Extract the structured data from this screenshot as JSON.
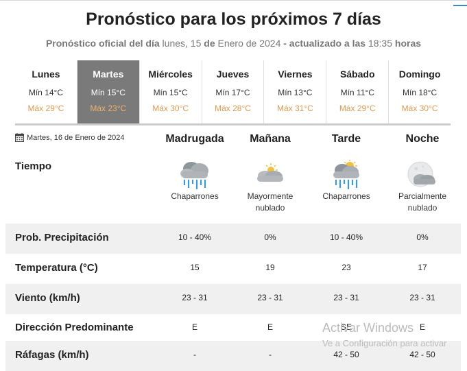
{
  "header": {
    "title": "Pronóstico para los próximos 7 días",
    "subtitle_prefix": "Pronóstico oficial del día",
    "subtitle_date": "lunes, 15",
    "subtitle_de": "de",
    "subtitle_month_year": "Enero de 2024",
    "subtitle_updated": "- actualizado a las",
    "subtitle_time": "18:35",
    "subtitle_suffix": "horas"
  },
  "days": [
    {
      "name": "Lunes",
      "min": "Mín 14°C",
      "max": "Máx 29°C",
      "active": false
    },
    {
      "name": "Martes",
      "min": "Mín 15°C",
      "max": "Máx 23°C",
      "active": true
    },
    {
      "name": "Miércoles",
      "min": "Mín 15°C",
      "max": "Máx 30°C",
      "active": false
    },
    {
      "name": "Jueves",
      "min": "Mín 17°C",
      "max": "Máx 28°C",
      "active": false
    },
    {
      "name": "Viernes",
      "min": "Mín 13°C",
      "max": "Máx 31°C",
      "active": false
    },
    {
      "name": "Sábado",
      "min": "Mín 11°C",
      "max": "Máx 29°C",
      "active": false
    },
    {
      "name": "Domingo",
      "min": "Mín 18°C",
      "max": "Máx 30°C",
      "active": false
    }
  ],
  "detail": {
    "date": "Martes, 16 de Enero de 2024",
    "periods": [
      "Madrugada",
      "Mañana",
      "Tarde",
      "Noche"
    ],
    "tiempo_label": "Tiempo",
    "conditions": [
      {
        "icon": "rain-cloud-icon",
        "text": "Chaparrones"
      },
      {
        "icon": "partly-cloudy-day-icon",
        "text": "Mayormente nublado"
      },
      {
        "icon": "rain-cloud-sun-icon",
        "text": "Chaparrones"
      },
      {
        "icon": "partly-cloudy-night-icon",
        "text": "Parcialmente nublado"
      }
    ],
    "rows": [
      {
        "label": "Prob. Precipitación",
        "values": [
          "10 - 40%",
          "0%",
          "10 - 40%",
          "0%"
        ]
      },
      {
        "label": "Temperatura (°C)",
        "values": [
          "15",
          "19",
          "23",
          "17"
        ]
      },
      {
        "label": "Viento (km/h)",
        "values": [
          "23 - 31",
          "23 - 31",
          "23 - 31",
          "23 - 31"
        ]
      },
      {
        "label": "Dirección Predominante",
        "values": [
          "E",
          "E",
          "SE",
          "E"
        ]
      },
      {
        "label": "Ráfagas (km/h)",
        "values": [
          "-",
          "-",
          "42 - 50",
          "42 - 50"
        ]
      }
    ]
  },
  "watermark": {
    "line1": "Activar Windows",
    "line2": "Ve a Configuración para activar"
  },
  "colors": {
    "active_day_bg": "#7a7a7a",
    "max_temp": "#d99a52",
    "row_shade": "#f0f0f0"
  }
}
